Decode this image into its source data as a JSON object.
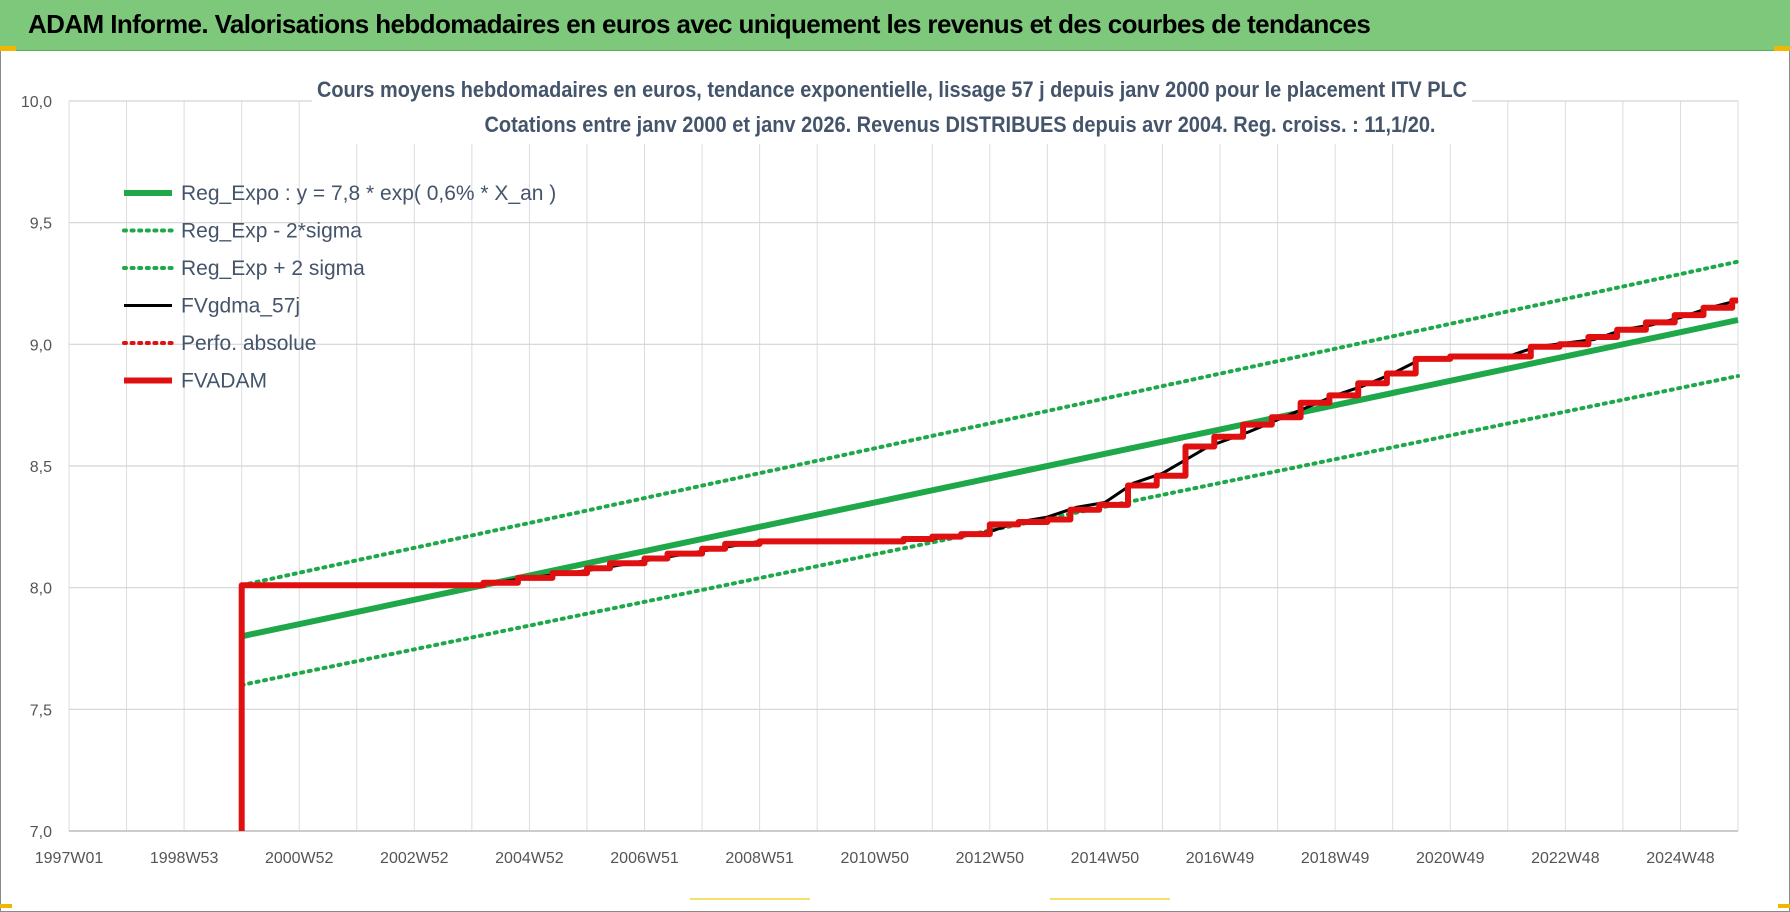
{
  "header": {
    "title": "ADAM Informe. Valorisations hebdomadaires en euros avec uniquement les revenus et des courbes de tendances"
  },
  "chart_data": {
    "type": "line",
    "title": "Cours moyens hebdomadaires en euros, tendance exponentielle, lissage 57 j depuis janv 2000 pour le placement ITV PLC",
    "subtitle": "Cotations entre janv 2000 et janv 2026. Revenus DISTRIBUES depuis avr 2004. Reg. croiss. : 11,1/20.",
    "xlabel": "",
    "ylabel": "",
    "xlim": [
      1997.0,
      2026.0
    ],
    "ylim": [
      7.0,
      10.0
    ],
    "grid": true,
    "legend_position": "top-left",
    "x_ticks": [
      {
        "x": 1997.0,
        "label": "1997W01"
      },
      {
        "x": 1999.0,
        "label": "1998W53"
      },
      {
        "x": 2001.0,
        "label": "2000W52"
      },
      {
        "x": 2003.0,
        "label": "2002W52"
      },
      {
        "x": 2005.0,
        "label": "2004W52"
      },
      {
        "x": 2007.0,
        "label": "2006W51"
      },
      {
        "x": 2009.0,
        "label": "2008W51"
      },
      {
        "x": 2011.0,
        "label": "2010W50"
      },
      {
        "x": 2013.0,
        "label": "2012W50"
      },
      {
        "x": 2015.0,
        "label": "2014W50"
      },
      {
        "x": 2017.0,
        "label": "2016W49"
      },
      {
        "x": 2019.0,
        "label": "2018W49"
      },
      {
        "x": 2021.0,
        "label": "2020W49"
      },
      {
        "x": 2023.0,
        "label": "2022W48"
      },
      {
        "x": 2025.0,
        "label": "2024W48"
      }
    ],
    "y_ticks": [
      {
        "y": 7.0,
        "label": "7,0"
      },
      {
        "y": 7.5,
        "label": "7,5"
      },
      {
        "y": 8.0,
        "label": "8,0"
      },
      {
        "y": 8.5,
        "label": "8,5"
      },
      {
        "y": 9.0,
        "label": "9,0"
      },
      {
        "y": 9.5,
        "label": "9,5"
      },
      {
        "y": 10.0,
        "label": "10,0"
      }
    ],
    "series": [
      {
        "name": "Reg_Expo : y = 7,8 * exp( 0,6% *  X_an )",
        "color": "#1fa84a",
        "style": "solid",
        "width": 6,
        "points": [
          [
            2000.0,
            7.8
          ],
          [
            2026.0,
            9.1
          ]
        ]
      },
      {
        "name": "Reg_Exp - 2*sigma",
        "color": "#1fa84a",
        "style": "dotted",
        "width": 4,
        "points": [
          [
            2000.0,
            7.6
          ],
          [
            2026.0,
            8.87
          ]
        ]
      },
      {
        "name": "Reg_Exp + 2 sigma",
        "color": "#1fa84a",
        "style": "dotted",
        "width": 4,
        "points": [
          [
            2000.0,
            8.01
          ],
          [
            2026.0,
            9.34
          ]
        ]
      },
      {
        "name": "FVgdma_57j",
        "color": "#000000",
        "style": "solid",
        "width": 3,
        "points": [
          [
            2000.0,
            7.0
          ],
          [
            2000.0,
            8.01
          ],
          [
            2004.0,
            8.01
          ],
          [
            2005.0,
            8.04
          ],
          [
            2006.0,
            8.07
          ],
          [
            2007.0,
            8.11
          ],
          [
            2008.0,
            8.15
          ],
          [
            2009.0,
            8.19
          ],
          [
            2011.0,
            8.19
          ],
          [
            2012.0,
            8.2
          ],
          [
            2013.0,
            8.23
          ],
          [
            2013.5,
            8.27
          ],
          [
            2014.0,
            8.29
          ],
          [
            2014.5,
            8.33
          ],
          [
            2015.0,
            8.35
          ],
          [
            2015.5,
            8.43
          ],
          [
            2016.0,
            8.47
          ],
          [
            2016.8,
            8.58
          ],
          [
            2017.5,
            8.64
          ],
          [
            2018.0,
            8.69
          ],
          [
            2018.5,
            8.74
          ],
          [
            2019.0,
            8.79
          ],
          [
            2019.5,
            8.83
          ],
          [
            2020.0,
            8.88
          ],
          [
            2020.5,
            8.94
          ],
          [
            2022.0,
            8.95
          ],
          [
            2022.5,
            8.99
          ],
          [
            2023.5,
            9.02
          ],
          [
            2024.0,
            9.06
          ],
          [
            2024.5,
            9.08
          ],
          [
            2025.0,
            9.11
          ],
          [
            2025.5,
            9.15
          ],
          [
            2026.0,
            9.18
          ]
        ]
      },
      {
        "name": "Perfo. absolue",
        "color": "#e01010",
        "style": "dotted",
        "width": 4,
        "points": []
      },
      {
        "name": "FVADAM",
        "color": "#e01010",
        "style": "step",
        "width": 6,
        "points": [
          [
            2000.0,
            7.0
          ],
          [
            2000.0,
            8.01
          ],
          [
            2004.2,
            8.02
          ],
          [
            2004.8,
            8.04
          ],
          [
            2005.4,
            8.06
          ],
          [
            2006.0,
            8.08
          ],
          [
            2006.4,
            8.1
          ],
          [
            2007.0,
            8.12
          ],
          [
            2007.4,
            8.14
          ],
          [
            2008.0,
            8.16
          ],
          [
            2008.4,
            8.18
          ],
          [
            2009.0,
            8.19
          ],
          [
            2011.0,
            8.19
          ],
          [
            2011.5,
            8.2
          ],
          [
            2012.0,
            8.21
          ],
          [
            2012.5,
            8.22
          ],
          [
            2013.0,
            8.26
          ],
          [
            2013.5,
            8.27
          ],
          [
            2014.0,
            8.28
          ],
          [
            2014.4,
            8.32
          ],
          [
            2014.9,
            8.34
          ],
          [
            2015.4,
            8.42
          ],
          [
            2015.9,
            8.46
          ],
          [
            2016.4,
            8.58
          ],
          [
            2016.9,
            8.62
          ],
          [
            2017.4,
            8.67
          ],
          [
            2017.9,
            8.7
          ],
          [
            2018.4,
            8.76
          ],
          [
            2018.9,
            8.79
          ],
          [
            2019.4,
            8.84
          ],
          [
            2019.9,
            8.88
          ],
          [
            2020.4,
            8.94
          ],
          [
            2021.0,
            8.95
          ],
          [
            2022.0,
            8.95
          ],
          [
            2022.4,
            8.99
          ],
          [
            2022.9,
            9.0
          ],
          [
            2023.4,
            9.03
          ],
          [
            2023.9,
            9.06
          ],
          [
            2024.4,
            9.09
          ],
          [
            2024.9,
            9.12
          ],
          [
            2025.4,
            9.15
          ],
          [
            2025.9,
            9.18
          ],
          [
            2026.0,
            9.18
          ]
        ]
      }
    ]
  }
}
